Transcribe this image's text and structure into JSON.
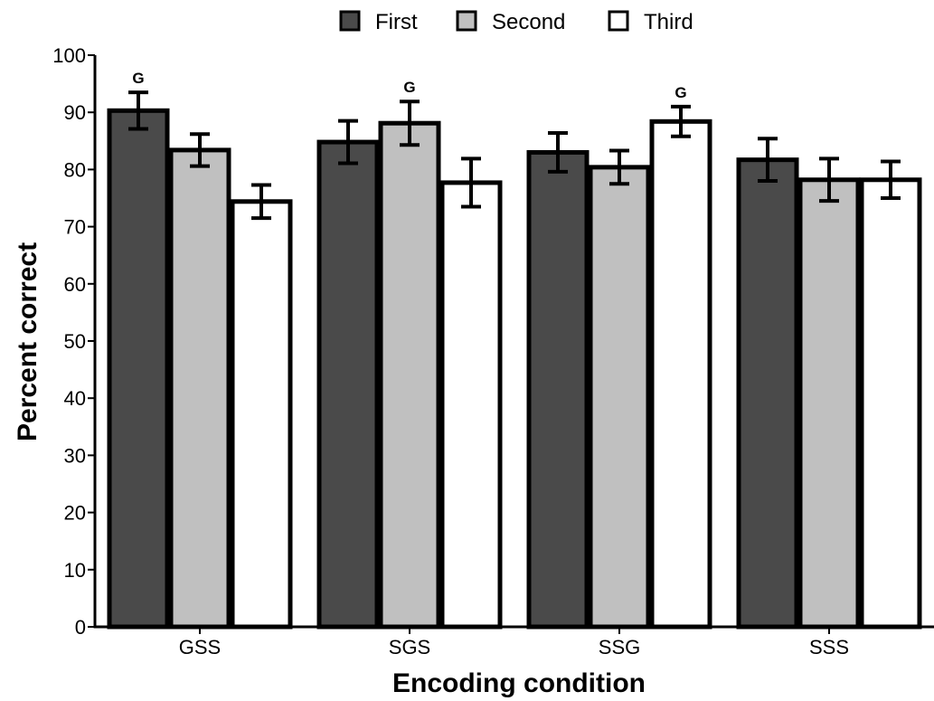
{
  "chart_data": {
    "type": "bar",
    "title": "",
    "xlabel": "Encoding condition",
    "ylabel": "Percent correct",
    "ylim": [
      0,
      100
    ],
    "yticks": [
      0,
      10,
      20,
      30,
      40,
      50,
      60,
      70,
      80,
      90,
      100
    ],
    "grid": false,
    "legend_position": "top",
    "categories": [
      "GSS",
      "SGS",
      "SSG",
      "SSS"
    ],
    "series": [
      {
        "name": "First",
        "color": "#4a4a4a",
        "values": [
          90.3,
          84.8,
          83.0,
          81.7
        ],
        "error": [
          3.2,
          3.7,
          3.4,
          3.7
        ]
      },
      {
        "name": "Second",
        "color": "#c0c0c0",
        "values": [
          83.4,
          88.1,
          80.4,
          78.2
        ],
        "error": [
          2.8,
          3.8,
          2.9,
          3.7
        ]
      },
      {
        "name": "Third",
        "color": "#ffffff",
        "values": [
          74.4,
          77.7,
          88.4,
          78.2
        ],
        "error": [
          2.9,
          4.2,
          2.6,
          3.2
        ]
      }
    ],
    "annotations": [
      {
        "text": "G",
        "category": "GSS",
        "series": "First"
      },
      {
        "text": "G",
        "category": "SGS",
        "series": "Second"
      },
      {
        "text": "G",
        "category": "SSG",
        "series": "Third"
      }
    ]
  }
}
